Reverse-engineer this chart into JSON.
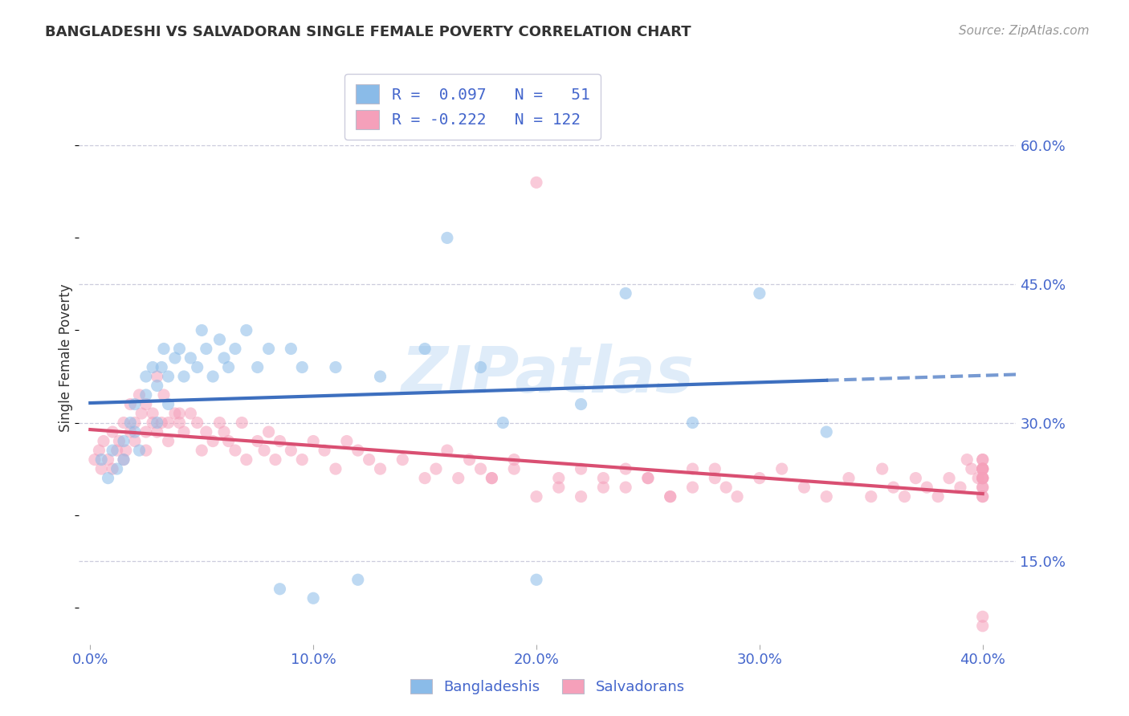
{
  "title": "BANGLADESHI VS SALVADORAN SINGLE FEMALE POVERTY CORRELATION CHART",
  "source": "Source: ZipAtlas.com",
  "ylabel": "Single Female Poverty",
  "xlim": [
    -0.005,
    0.415
  ],
  "ylim": [
    0.06,
    0.68
  ],
  "yticks": [
    0.15,
    0.3,
    0.45,
    0.6
  ],
  "ytick_labels": [
    "15.0%",
    "30.0%",
    "45.0%",
    "60.0%"
  ],
  "xticks": [
    0.0,
    0.1,
    0.2,
    0.3,
    0.4
  ],
  "xtick_labels": [
    "0.0%",
    "10.0%",
    "20.0%",
    "30.0%",
    "40.0%"
  ],
  "blue_dot_color": "#8ABBE8",
  "pink_dot_color": "#F5A0BA",
  "blue_line_color": "#3D6FBF",
  "pink_line_color": "#D94F72",
  "title_color": "#333333",
  "tick_color": "#4466CC",
  "grid_color": "#CCCCDD",
  "source_color": "#999999",
  "bg_color": "#FFFFFF",
  "watermark_color": "#DDEEFF",
  "dot_size": 120,
  "dot_alpha": 0.55,
  "bangladeshi_x": [
    0.005,
    0.008,
    0.01,
    0.012,
    0.015,
    0.015,
    0.018,
    0.02,
    0.02,
    0.022,
    0.025,
    0.025,
    0.028,
    0.03,
    0.03,
    0.032,
    0.033,
    0.035,
    0.035,
    0.038,
    0.04,
    0.042,
    0.045,
    0.048,
    0.05,
    0.052,
    0.055,
    0.058,
    0.06,
    0.062,
    0.065,
    0.07,
    0.075,
    0.08,
    0.085,
    0.09,
    0.095,
    0.1,
    0.11,
    0.12,
    0.13,
    0.15,
    0.16,
    0.175,
    0.185,
    0.2,
    0.22,
    0.24,
    0.27,
    0.3,
    0.33
  ],
  "bangladeshi_y": [
    0.26,
    0.24,
    0.27,
    0.25,
    0.28,
    0.26,
    0.3,
    0.29,
    0.32,
    0.27,
    0.35,
    0.33,
    0.36,
    0.3,
    0.34,
    0.36,
    0.38,
    0.32,
    0.35,
    0.37,
    0.38,
    0.35,
    0.37,
    0.36,
    0.4,
    0.38,
    0.35,
    0.39,
    0.37,
    0.36,
    0.38,
    0.4,
    0.36,
    0.38,
    0.12,
    0.38,
    0.36,
    0.11,
    0.36,
    0.13,
    0.35,
    0.38,
    0.5,
    0.36,
    0.3,
    0.13,
    0.32,
    0.44,
    0.3,
    0.44,
    0.29
  ],
  "salvadoran_x": [
    0.002,
    0.004,
    0.005,
    0.006,
    0.008,
    0.01,
    0.01,
    0.012,
    0.013,
    0.015,
    0.015,
    0.016,
    0.018,
    0.018,
    0.02,
    0.02,
    0.022,
    0.023,
    0.025,
    0.025,
    0.025,
    0.028,
    0.028,
    0.03,
    0.03,
    0.032,
    0.033,
    0.035,
    0.035,
    0.038,
    0.04,
    0.04,
    0.042,
    0.045,
    0.048,
    0.05,
    0.052,
    0.055,
    0.058,
    0.06,
    0.062,
    0.065,
    0.068,
    0.07,
    0.075,
    0.078,
    0.08,
    0.083,
    0.085,
    0.09,
    0.095,
    0.1,
    0.105,
    0.11,
    0.115,
    0.12,
    0.125,
    0.13,
    0.14,
    0.15,
    0.155,
    0.16,
    0.165,
    0.17,
    0.175,
    0.18,
    0.19,
    0.2,
    0.21,
    0.22,
    0.23,
    0.24,
    0.25,
    0.26,
    0.27,
    0.28,
    0.285,
    0.29,
    0.3,
    0.31,
    0.32,
    0.33,
    0.34,
    0.35,
    0.355,
    0.36,
    0.365,
    0.37,
    0.375,
    0.38,
    0.385,
    0.39,
    0.393,
    0.395,
    0.398,
    0.4,
    0.4,
    0.4,
    0.4,
    0.4,
    0.4,
    0.4,
    0.4,
    0.4,
    0.4,
    0.4,
    0.4,
    0.4,
    0.4,
    0.4,
    0.4,
    0.28,
    0.27,
    0.26,
    0.25,
    0.24,
    0.23,
    0.22,
    0.21,
    0.2,
    0.19,
    0.18
  ],
  "salvadoran_y": [
    0.26,
    0.27,
    0.25,
    0.28,
    0.26,
    0.29,
    0.25,
    0.27,
    0.28,
    0.3,
    0.26,
    0.27,
    0.32,
    0.29,
    0.28,
    0.3,
    0.33,
    0.31,
    0.29,
    0.32,
    0.27,
    0.31,
    0.3,
    0.35,
    0.29,
    0.3,
    0.33,
    0.3,
    0.28,
    0.31,
    0.3,
    0.31,
    0.29,
    0.31,
    0.3,
    0.27,
    0.29,
    0.28,
    0.3,
    0.29,
    0.28,
    0.27,
    0.3,
    0.26,
    0.28,
    0.27,
    0.29,
    0.26,
    0.28,
    0.27,
    0.26,
    0.28,
    0.27,
    0.25,
    0.28,
    0.27,
    0.26,
    0.25,
    0.26,
    0.24,
    0.25,
    0.27,
    0.24,
    0.26,
    0.25,
    0.24,
    0.26,
    0.56,
    0.23,
    0.25,
    0.24,
    0.23,
    0.24,
    0.22,
    0.25,
    0.24,
    0.23,
    0.22,
    0.24,
    0.25,
    0.23,
    0.22,
    0.24,
    0.22,
    0.25,
    0.23,
    0.22,
    0.24,
    0.23,
    0.22,
    0.24,
    0.23,
    0.26,
    0.25,
    0.24,
    0.22,
    0.24,
    0.25,
    0.23,
    0.26,
    0.25,
    0.24,
    0.26,
    0.09,
    0.08,
    0.25,
    0.24,
    0.23,
    0.25,
    0.22,
    0.24,
    0.25,
    0.23,
    0.22,
    0.24,
    0.25,
    0.23,
    0.22,
    0.24,
    0.22,
    0.25,
    0.24
  ]
}
